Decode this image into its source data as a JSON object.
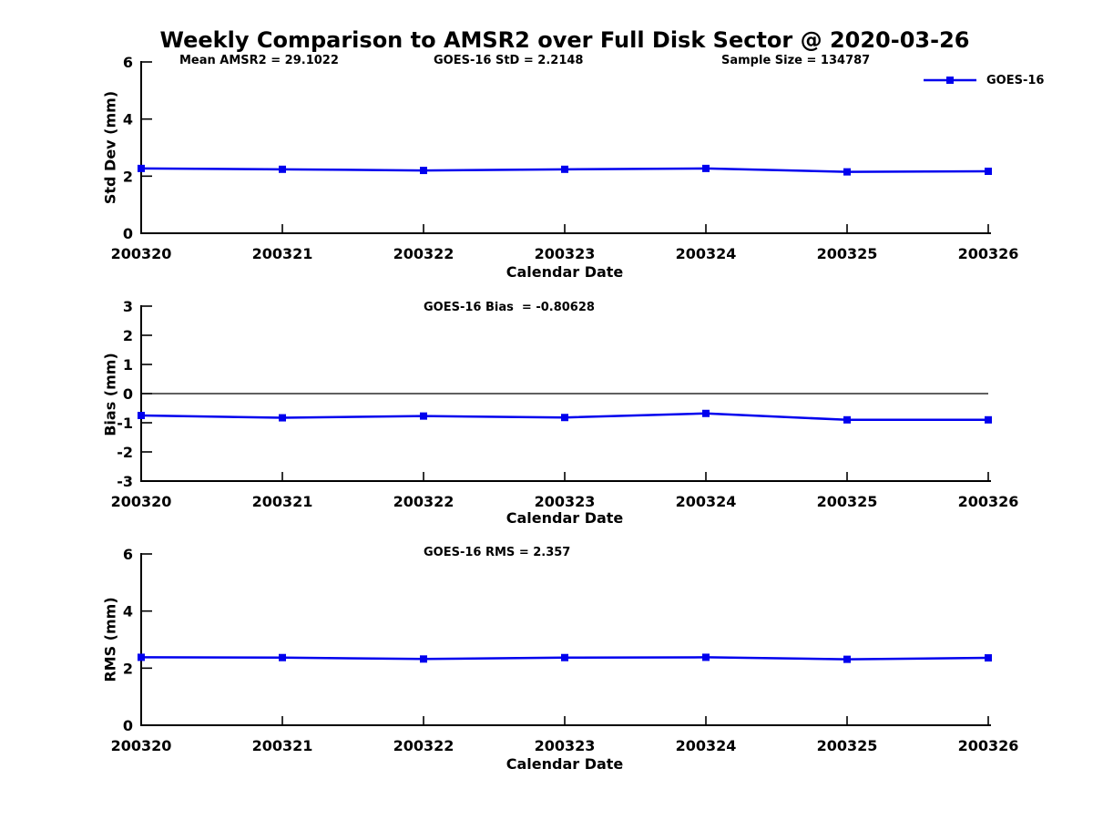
{
  "title": "Weekly Comparison to AMSR2 over Full Disk Sector @ 2020-03-26",
  "header_stats": {
    "mean_amsr2": "Mean AMSR2 = 29.1022",
    "goes16_std": "GOES-16 StD = 2.2148",
    "sample_size": "Sample Size = 134787"
  },
  "legend": {
    "label": "GOES-16",
    "position": "top-right"
  },
  "colors": {
    "series": "#0000ee",
    "axis": "#000000",
    "text": "#000000",
    "background": "#ffffff"
  },
  "chart_data": [
    {
      "type": "line",
      "id": "std-dev",
      "title": "",
      "ylabel": "Std Dev (mm)",
      "xlabel": "Calendar Date",
      "ylim": [
        0,
        6
      ],
      "yticks": [
        0,
        2,
        4,
        6
      ],
      "grid": false,
      "zero_line": false,
      "categories": [
        "200320",
        "200321",
        "200322",
        "200323",
        "200324",
        "200325",
        "200326"
      ],
      "series": [
        {
          "name": "GOES-16",
          "marker": "square",
          "values": [
            2.27,
            2.24,
            2.2,
            2.24,
            2.27,
            2.15,
            2.17
          ]
        }
      ]
    },
    {
      "type": "line",
      "id": "bias",
      "title": "GOES-16 Bias  = -0.80628",
      "ylabel": "Bias (mm)",
      "xlabel": "Calendar Date",
      "ylim": [
        -3,
        3
      ],
      "yticks": [
        -3,
        -2,
        -1,
        0,
        1,
        2,
        3
      ],
      "grid": false,
      "zero_line": true,
      "categories": [
        "200320",
        "200321",
        "200322",
        "200323",
        "200324",
        "200325",
        "200326"
      ],
      "series": [
        {
          "name": "GOES-16",
          "marker": "square",
          "values": [
            -0.75,
            -0.83,
            -0.77,
            -0.82,
            -0.68,
            -0.9,
            -0.9
          ]
        }
      ]
    },
    {
      "type": "line",
      "id": "rms",
      "title": "GOES-16 RMS = 2.357",
      "ylabel": "RMS (mm)",
      "xlabel": "Calendar Date",
      "ylim": [
        0,
        6
      ],
      "yticks": [
        0,
        2,
        4,
        6
      ],
      "grid": false,
      "zero_line": false,
      "categories": [
        "200320",
        "200321",
        "200322",
        "200323",
        "200324",
        "200325",
        "200326"
      ],
      "series": [
        {
          "name": "GOES-16",
          "marker": "square",
          "values": [
            2.38,
            2.37,
            2.32,
            2.37,
            2.38,
            2.31,
            2.36
          ]
        }
      ]
    }
  ]
}
